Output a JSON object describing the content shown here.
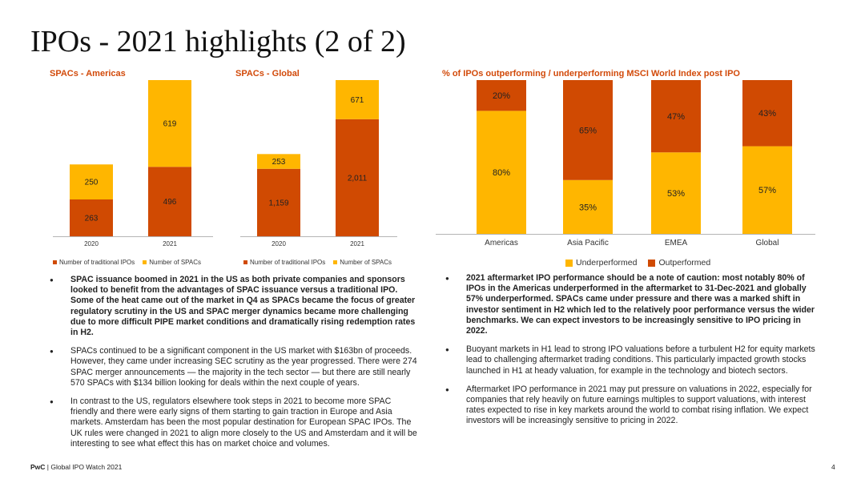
{
  "title": "IPOs - 2021 highlights (2 of 2)",
  "colors": {
    "traditional": "#d04a02",
    "spac": "#ffb600",
    "title_orange": "#d24a0a"
  },
  "chart_data": [
    {
      "type": "bar",
      "stacked": true,
      "title": "SPACs - Americas",
      "categories": [
        "2020",
        "2021"
      ],
      "series": [
        {
          "name": "Number of traditional IPOs",
          "values": [
            263,
            496
          ],
          "labels": [
            "263",
            "496"
          ]
        },
        {
          "name": "Number of SPACs",
          "values": [
            250,
            619
          ],
          "labels": [
            "250",
            "619"
          ]
        }
      ],
      "ylim": [
        0,
        1115
      ],
      "legend": [
        "Number of traditional IPOs",
        "Number of SPACs"
      ]
    },
    {
      "type": "bar",
      "stacked": true,
      "title": "SPACs - Global",
      "categories": [
        "2020",
        "2021"
      ],
      "series": [
        {
          "name": "Number of traditional IPOs",
          "values": [
            1159,
            2011
          ],
          "labels": [
            "1,159",
            "2,011"
          ]
        },
        {
          "name": "Number of SPACs",
          "values": [
            253,
            671
          ],
          "labels": [
            "253",
            "671"
          ]
        }
      ],
      "ylim": [
        0,
        2682
      ],
      "legend": [
        "Number of traditional IPOs",
        "Number of SPACs"
      ]
    },
    {
      "type": "bar",
      "stacked": true,
      "percent": true,
      "title": "% of IPOs outperforming / underperforming MSCI World Index post IPO",
      "categories": [
        "Americas",
        "Asia Pacific",
        "EMEA",
        "Global"
      ],
      "series": [
        {
          "name": "Underperformed",
          "values": [
            80,
            35,
            53,
            57
          ],
          "labels": [
            "80%",
            "35%",
            "53%",
            "57%"
          ]
        },
        {
          "name": "Outperformed",
          "values": [
            20,
            65,
            47,
            43
          ],
          "labels": [
            "20%",
            "65%",
            "47%",
            "43%"
          ]
        }
      ],
      "ylim": [
        0,
        100
      ],
      "legend": [
        "Underperformed",
        "Outperformed"
      ]
    }
  ],
  "left_bullets": [
    {
      "bold": true,
      "text": "SPAC issuance boomed in 2021 in the US as both private companies and sponsors looked to benefit from the advantages of SPAC issuance versus a traditional IPO. Some of the heat came out of the market in Q4 as SPACs became the focus of greater regulatory scrutiny in the US and SPAC merger dynamics became more challenging due to more difficult PIPE market conditions and dramatically rising redemption rates in H2."
    },
    {
      "bold": false,
      "text": "SPACs continued to be a significant component in the US market with $163bn of proceeds. However, they came under increasing SEC scrutiny as the year progressed. There were 274 SPAC merger announcements — the majority in the tech sector — but there are still nearly 570 SPACs with $134 billion looking for deals within the next couple of years."
    },
    {
      "bold": false,
      "text": "In contrast to the US, regulators elsewhere took steps in 2021 to become more SPAC friendly and there were early signs of them starting to gain traction in Europe and Asia markets. Amsterdam has been the most popular destination for European SPAC IPOs. The UK rules were changed in 2021 to align more closely to the US and Amsterdam and it will be interesting to see what effect this has on market choice and volumes."
    }
  ],
  "right_bullets": [
    {
      "bold": true,
      "text": "2021 aftermarket IPO performance should be a note of caution: most notably 80% of IPOs in the Americas underperformed in the aftermarket to 31-Dec-2021 and globally 57% underperformed. SPACs came under pressure and there was a marked shift in investor sentiment in H2 which led to the relatively poor performance versus the wider benchmarks. We can expect investors to be increasingly sensitive to IPO pricing in 2022."
    },
    {
      "bold": false,
      "text": "Buoyant markets in H1 lead to strong IPO valuations before a turbulent H2 for equity markets lead to challenging aftermarket trading conditions. This particularly impacted growth stocks launched in H1 at heady valuation, for example in the technology and biotech sectors."
    },
    {
      "bold": false,
      "text": "Aftermarket IPO performance in 2021 may put pressure on valuations in 2022, especially for companies that rely heavily on future earnings multiples to support valuations, with interest rates expected to rise in key markets around the world to combat rising inflation. We expect investors will be increasingly sensitive to pricing in 2022."
    }
  ],
  "footer": {
    "brand": "PwC",
    "text": " | Global IPO Watch 2021",
    "page": "4"
  }
}
